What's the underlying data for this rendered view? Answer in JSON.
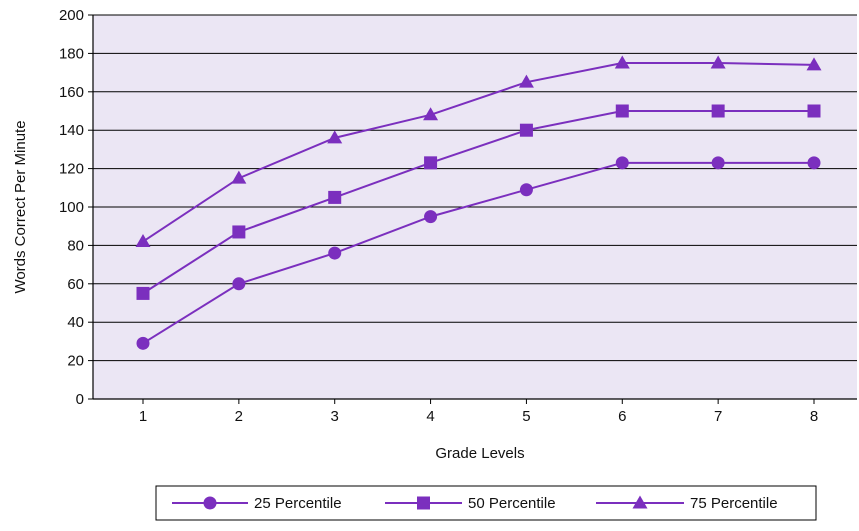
{
  "chart_data": {
    "type": "line",
    "xlabel": "Grade Levels",
    "ylabel": "Words Correct Per Minute",
    "x": [
      1,
      2,
      3,
      4,
      5,
      6,
      7,
      8
    ],
    "ylim": [
      0,
      200
    ],
    "yticks": [
      0,
      20,
      40,
      60,
      80,
      100,
      120,
      140,
      160,
      180,
      200
    ],
    "grid": "horizontal",
    "legend_position": "bottom",
    "colors": {
      "line": "#7b2fbe",
      "plot_bg": "#ebe6f4",
      "grid": "#000000"
    },
    "series": [
      {
        "name": "25 Percentile",
        "marker": "circle",
        "values": [
          29,
          60,
          76,
          95,
          109,
          123,
          123,
          123
        ]
      },
      {
        "name": "50 Percentile",
        "marker": "square",
        "values": [
          55,
          87,
          105,
          123,
          140,
          150,
          150,
          150
        ]
      },
      {
        "name": "75 Percentile",
        "marker": "triangle",
        "values": [
          82,
          115,
          136,
          148,
          165,
          175,
          175,
          174
        ]
      }
    ]
  }
}
